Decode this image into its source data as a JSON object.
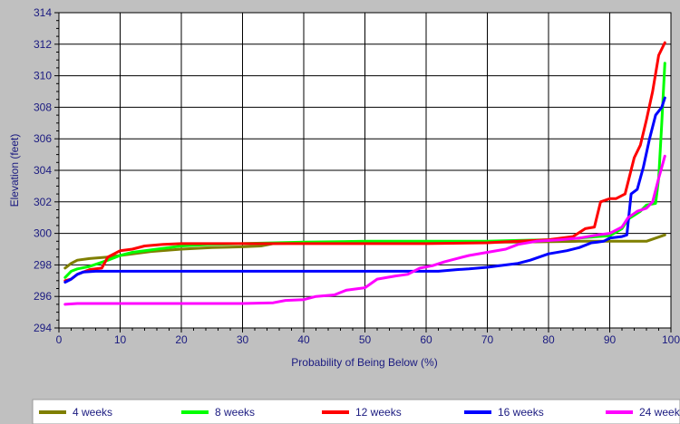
{
  "chart_data": {
    "type": "line",
    "title": "",
    "xlabel": "Probability of Being Below (%)",
    "ylabel": "Elevation (feet)",
    "xlim": [
      0,
      100
    ],
    "ylim": [
      294,
      314
    ],
    "xticks": [
      0,
      10,
      20,
      30,
      40,
      50,
      60,
      70,
      80,
      90,
      100
    ],
    "yticks": [
      294,
      296,
      298,
      300,
      302,
      304,
      306,
      308,
      310,
      312,
      314
    ],
    "grid": true,
    "legend_position": "bottom",
    "series": [
      {
        "name": "4 weeks",
        "color": "#7f7f00",
        "points": [
          [
            1,
            297.8
          ],
          [
            2,
            298.1
          ],
          [
            3,
            298.3
          ],
          [
            5,
            298.4
          ],
          [
            8,
            298.5
          ],
          [
            10,
            298.6
          ],
          [
            15,
            298.85
          ],
          [
            20,
            299.0
          ],
          [
            25,
            299.1
          ],
          [
            30,
            299.15
          ],
          [
            33,
            299.2
          ],
          [
            35,
            299.35
          ],
          [
            45,
            299.45
          ],
          [
            60,
            299.45
          ],
          [
            75,
            299.45
          ],
          [
            85,
            299.5
          ],
          [
            95,
            299.5
          ],
          [
            96,
            299.5
          ],
          [
            99,
            299.9
          ]
        ]
      },
      {
        "name": "8 weeks",
        "color": "#00ff00",
        "points": [
          [
            1,
            297.2
          ],
          [
            2,
            297.6
          ],
          [
            3,
            297.75
          ],
          [
            5,
            297.9
          ],
          [
            8,
            298.3
          ],
          [
            10,
            298.6
          ],
          [
            12,
            298.8
          ],
          [
            15,
            298.95
          ],
          [
            18,
            299.1
          ],
          [
            20,
            299.2
          ],
          [
            25,
            299.3
          ],
          [
            30,
            299.35
          ],
          [
            40,
            299.45
          ],
          [
            50,
            299.5
          ],
          [
            60,
            299.5
          ],
          [
            70,
            299.5
          ],
          [
            75,
            299.55
          ],
          [
            80,
            299.6
          ],
          [
            85,
            299.7
          ],
          [
            88,
            299.8
          ],
          [
            90,
            299.85
          ],
          [
            92,
            300.3
          ],
          [
            93,
            300.9
          ],
          [
            95,
            301.4
          ],
          [
            96,
            301.8
          ],
          [
            97.5,
            301.9
          ],
          [
            98,
            303.5
          ],
          [
            98.5,
            307.0
          ],
          [
            99,
            310.8
          ]
        ]
      },
      {
        "name": "12 weeks",
        "color": "#ff0000",
        "points": [
          [
            1,
            297.0
          ],
          [
            2,
            297.1
          ],
          [
            3,
            297.4
          ],
          [
            5,
            297.7
          ],
          [
            7,
            297.8
          ],
          [
            8,
            298.5
          ],
          [
            10,
            298.9
          ],
          [
            12,
            299.0
          ],
          [
            14,
            299.2
          ],
          [
            17,
            299.3
          ],
          [
            20,
            299.35
          ],
          [
            30,
            299.35
          ],
          [
            40,
            299.35
          ],
          [
            50,
            299.35
          ],
          [
            60,
            299.35
          ],
          [
            70,
            299.4
          ],
          [
            75,
            299.5
          ],
          [
            80,
            299.6
          ],
          [
            84,
            299.8
          ],
          [
            86,
            300.3
          ],
          [
            87.5,
            300.4
          ],
          [
            88.5,
            302.0
          ],
          [
            90,
            302.2
          ],
          [
            91,
            302.2
          ],
          [
            92.5,
            302.5
          ],
          [
            94,
            304.8
          ],
          [
            95,
            305.6
          ],
          [
            96,
            307.2
          ],
          [
            97,
            309.0
          ],
          [
            98,
            311.3
          ],
          [
            99,
            312.1
          ]
        ]
      },
      {
        "name": "16 weeks",
        "color": "#0000ff",
        "points": [
          [
            1,
            296.9
          ],
          [
            2,
            297.1
          ],
          [
            3,
            297.4
          ],
          [
            4,
            297.55
          ],
          [
            6,
            297.6
          ],
          [
            20,
            297.6
          ],
          [
            40,
            297.6
          ],
          [
            50,
            297.6
          ],
          [
            55,
            297.6
          ],
          [
            62,
            297.6
          ],
          [
            65,
            297.7
          ],
          [
            67,
            297.75
          ],
          [
            70,
            297.85
          ],
          [
            72,
            297.95
          ],
          [
            75,
            298.1
          ],
          [
            77,
            298.3
          ],
          [
            80,
            298.7
          ],
          [
            83,
            298.9
          ],
          [
            85,
            299.1
          ],
          [
            87,
            299.4
          ],
          [
            88,
            299.45
          ],
          [
            89,
            299.5
          ],
          [
            90,
            299.7
          ],
          [
            92,
            299.8
          ],
          [
            92.8,
            299.9
          ],
          [
            93.5,
            302.5
          ],
          [
            94.5,
            302.8
          ],
          [
            95.5,
            304.2
          ],
          [
            96.5,
            306.0
          ],
          [
            97.5,
            307.5
          ],
          [
            98.5,
            308.0
          ],
          [
            99,
            308.6
          ]
        ]
      },
      {
        "name": "24 weeks",
        "color": "#ff00ff",
        "points": [
          [
            1,
            295.5
          ],
          [
            3,
            295.55
          ],
          [
            10,
            295.55
          ],
          [
            20,
            295.55
          ],
          [
            30,
            295.55
          ],
          [
            35,
            295.6
          ],
          [
            37,
            295.75
          ],
          [
            40,
            295.8
          ],
          [
            42,
            296.0
          ],
          [
            45,
            296.1
          ],
          [
            47,
            296.4
          ],
          [
            50,
            296.55
          ],
          [
            52,
            297.1
          ],
          [
            55,
            297.3
          ],
          [
            57,
            297.4
          ],
          [
            59,
            297.8
          ],
          [
            61,
            297.95
          ],
          [
            63,
            298.2
          ],
          [
            65,
            298.4
          ],
          [
            67,
            298.6
          ],
          [
            70,
            298.8
          ],
          [
            73,
            299.0
          ],
          [
            75,
            299.3
          ],
          [
            78,
            299.5
          ],
          [
            82,
            299.6
          ],
          [
            85,
            299.7
          ],
          [
            88,
            299.9
          ],
          [
            90,
            300.0
          ],
          [
            92,
            300.4
          ],
          [
            93,
            301.0
          ],
          [
            94.5,
            301.4
          ],
          [
            96,
            301.6
          ],
          [
            97,
            302.0
          ],
          [
            98,
            303.5
          ],
          [
            99,
            304.9
          ]
        ]
      }
    ]
  }
}
